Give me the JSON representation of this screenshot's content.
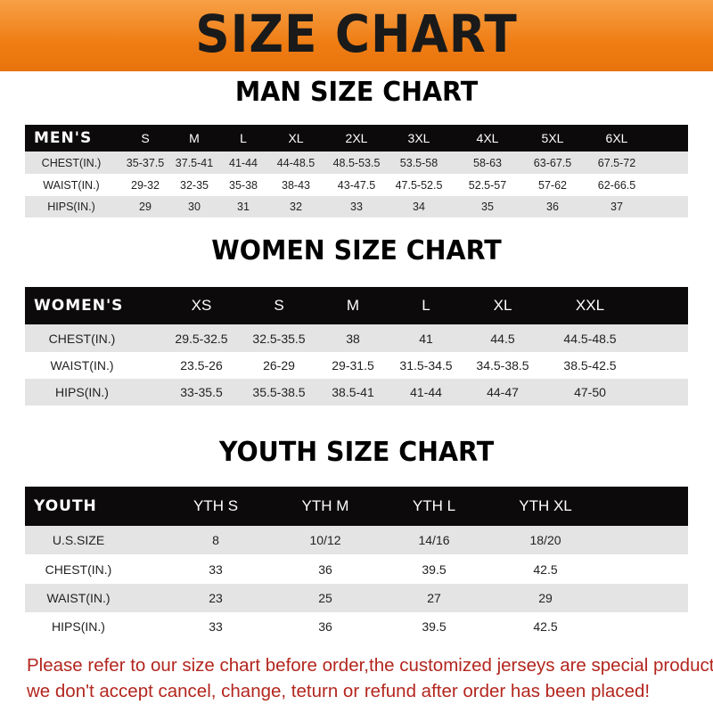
{
  "banner": {
    "title": "SIZE CHART",
    "color": "#ef7d14"
  },
  "men": {
    "title": "MAN SIZE CHART",
    "header_label": "MEN'S",
    "sizes": [
      "S",
      "M",
      "L",
      "XL",
      "2XL",
      "3XL",
      "4XL",
      "5XL",
      "6XL"
    ],
    "rows": [
      {
        "label": "CHEST(IN.)",
        "values": [
          "35-37.5",
          "37.5-41",
          "41-44",
          "44-48.5",
          "48.5-53.5",
          "53.5-58",
          "58-63",
          "63-67.5",
          "67.5-72"
        ]
      },
      {
        "label": "WAIST(IN.)",
        "values": [
          "29-32",
          "32-35",
          "35-38",
          "38-43",
          "43-47.5",
          "47.5-52.5",
          "52.5-57",
          "57-62",
          "62-66.5"
        ]
      },
      {
        "label": "HIPS(IN.)",
        "values": [
          "29",
          "30",
          "31",
          "32",
          "33",
          "34",
          "35",
          "36",
          "37"
        ]
      }
    ]
  },
  "women": {
    "title": "WOMEN SIZE CHART",
    "header_label": "WOMEN'S",
    "sizes": [
      "XS",
      "S",
      "M",
      "L",
      "XL",
      "XXL"
    ],
    "rows": [
      {
        "label": "CHEST(IN.)",
        "values": [
          "29.5-32.5",
          "32.5-35.5",
          "38",
          "41",
          "44.5",
          "44.5-48.5"
        ]
      },
      {
        "label": "WAIST(IN.)",
        "values": [
          "23.5-26",
          "26-29",
          "29-31.5",
          "31.5-34.5",
          "34.5-38.5",
          "38.5-42.5"
        ]
      },
      {
        "label": "HIPS(IN.)",
        "values": [
          "33-35.5",
          "35.5-38.5",
          "38.5-41",
          "41-44",
          "44-47",
          "47-50"
        ]
      }
    ]
  },
  "youth": {
    "title": "YOUTH SIZE CHART",
    "header_label": "YOUTH",
    "sizes": [
      "YTH S",
      "YTH M",
      "YTH L",
      "YTH XL"
    ],
    "rows": [
      {
        "label": "U.S.SIZE",
        "values": [
          "8",
          "10/12",
          "14/16",
          "18/20"
        ]
      },
      {
        "label": "CHEST(IN.)",
        "values": [
          "33",
          "36",
          "39.5",
          "42.5"
        ]
      },
      {
        "label": "WAIST(IN.)",
        "values": [
          "23",
          "25",
          "27",
          "29"
        ]
      },
      {
        "label": "HIPS(IN.)",
        "values": [
          "33",
          "36",
          "39.5",
          "42.5"
        ]
      }
    ]
  },
  "footer": {
    "line1": "Please refer to our size chart before order,the customized jerseys are special products,",
    "line2": "we don't accept cancel, change, teturn or refund after order has been placed!",
    "color": "#b3261e"
  }
}
